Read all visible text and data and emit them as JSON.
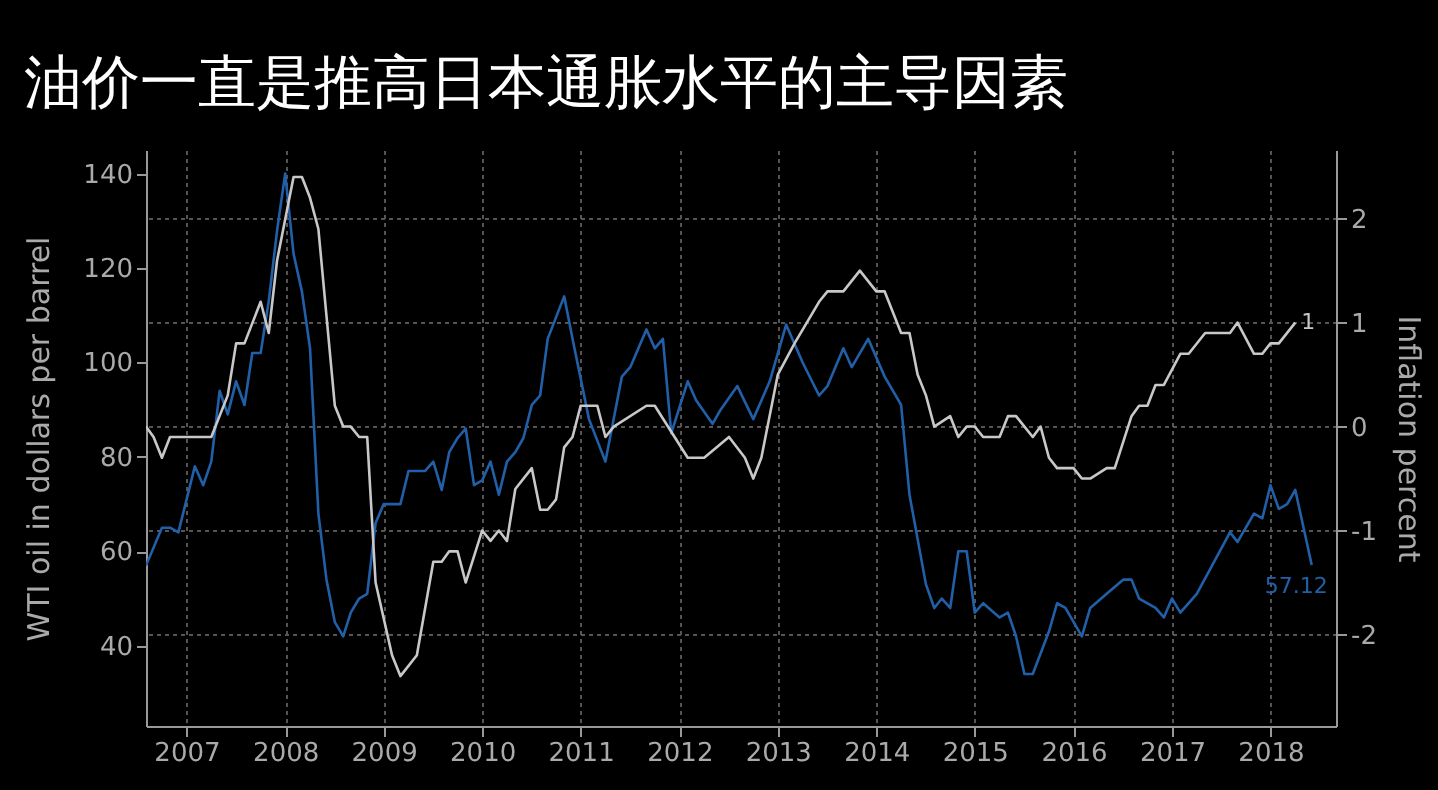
{
  "chart_data": {
    "type": "line",
    "title": "油价一直是推高日本通胀水平的主导因素",
    "ylabel": "WTI oil in dollars per barrel",
    "y2label": "Inflation percent",
    "xlim": [
      "2007-02",
      "2019-03"
    ],
    "xticks": [
      {
        "value": "2007-07",
        "label": "2007"
      },
      {
        "value": "2008-07",
        "label": "2008"
      },
      {
        "value": "2009-07",
        "label": "2009"
      },
      {
        "value": "2010-07",
        "label": "2010"
      },
      {
        "value": "2011-07",
        "label": "2011"
      },
      {
        "value": "2012-07",
        "label": "2012"
      },
      {
        "value": "2013-07",
        "label": "2013"
      },
      {
        "value": "2014-07",
        "label": "2014"
      },
      {
        "value": "2015-07",
        "label": "2015"
      },
      {
        "value": "2016-07",
        "label": "2016"
      },
      {
        "value": "2017-07",
        "label": "2017"
      },
      {
        "value": "2018-07",
        "label": "2018"
      }
    ],
    "ylim": [
      23,
      145
    ],
    "yticks": [
      40,
      60,
      80,
      100,
      120,
      140
    ],
    "y2lim": [
      -2.88,
      2.66
    ],
    "y2ticks": [
      -2,
      -1,
      0,
      1,
      2
    ],
    "grid": true,
    "series": [
      {
        "color": "#2160a8",
        "x": [
          "2007-02",
          "2007-04",
          "2007-05",
          "2007-06",
          "2007-08",
          "2007-09",
          "2007-10",
          "2007-11",
          "2007-12",
          "2008-01",
          "2008-02",
          "2008-03",
          "2008-04",
          "2008-05",
          "2008-06",
          "2008-07",
          "2008-08",
          "2008-09",
          "2008-10",
          "2008-11",
          "2008-12",
          "2009-01",
          "2009-02",
          "2009-03",
          "2009-04",
          "2009-05",
          "2009-06",
          "2009-07",
          "2009-08",
          "2009-09",
          "2009-10",
          "2009-12",
          "2010-01",
          "2010-02",
          "2010-03",
          "2010-04",
          "2010-05",
          "2010-06",
          "2010-07",
          "2010-08",
          "2010-09",
          "2010-10",
          "2010-11",
          "2010-12",
          "2011-01",
          "2011-02",
          "2011-03",
          "2011-05",
          "2011-06",
          "2011-08",
          "2011-10",
          "2011-12",
          "2012-01",
          "2012-03",
          "2012-04",
          "2012-05",
          "2012-06",
          "2012-08",
          "2012-09",
          "2012-11",
          "2012-12",
          "2013-02",
          "2013-04",
          "2013-06",
          "2013-08",
          "2013-10",
          "2013-12",
          "2014-01",
          "2014-03",
          "2014-04",
          "2014-06",
          "2014-08",
          "2014-10",
          "2014-11",
          "2015-01",
          "2015-02",
          "2015-03",
          "2015-04",
          "2015-05",
          "2015-06",
          "2015-07",
          "2015-08",
          "2015-10",
          "2015-11",
          "2015-12",
          "2016-01",
          "2016-02",
          "2016-04",
          "2016-05",
          "2016-06",
          "2016-08",
          "2016-09",
          "2016-11",
          "2017-01",
          "2017-02",
          "2017-03",
          "2017-05",
          "2017-06",
          "2017-07",
          "2017-08",
          "2017-10",
          "2018-02",
          "2018-03",
          "2018-05",
          "2018-06",
          "2018-07",
          "2018-08",
          "2018-09",
          "2018-10",
          "2018-12"
        ],
        "values": [
          57,
          65,
          65,
          64,
          78,
          74,
          79,
          94,
          89,
          96,
          91,
          102,
          102,
          113,
          128,
          140,
          123,
          115,
          103,
          68,
          54,
          45,
          42,
          47,
          50,
          51,
          66,
          70,
          70,
          70,
          77,
          77,
          79,
          73,
          81,
          84,
          86,
          74,
          75,
          79,
          72,
          79,
          81,
          84,
          91,
          93,
          105,
          114,
          105,
          88,
          79,
          97,
          99,
          107,
          103,
          105,
          85,
          96,
          92,
          87,
          90,
          95,
          88,
          96,
          108,
          100,
          93,
          95,
          103,
          99,
          105,
          97,
          91,
          72,
          53,
          48,
          50,
          48,
          60,
          60,
          47,
          49,
          46,
          47,
          42,
          34,
          34,
          43,
          49,
          48,
          42,
          48,
          51,
          54,
          54,
          50,
          48,
          46,
          50,
          47,
          51,
          64,
          62,
          68,
          67,
          74,
          69,
          70,
          73,
          57.12
        ],
        "value_labels": [
          null,
          null,
          null,
          null,
          null,
          null,
          null,
          null,
          null,
          null,
          null,
          null,
          null,
          null,
          null,
          null,
          null,
          null,
          null,
          null,
          null,
          null,
          null,
          null,
          null,
          null,
          null,
          null,
          null,
          null,
          null,
          null,
          null,
          null,
          null,
          null,
          null,
          null,
          null,
          null,
          null,
          null,
          null,
          null,
          null,
          null,
          null,
          null,
          null,
          null,
          null,
          null,
          null,
          null,
          null,
          null,
          null,
          null,
          null,
          null,
          null,
          null,
          null,
          null,
          null,
          null,
          null,
          null,
          null,
          null,
          null,
          null,
          null,
          null,
          null,
          null,
          null,
          null,
          null,
          null,
          null,
          null,
          null,
          null,
          null,
          null,
          null,
          null,
          null,
          null,
          null,
          null,
          null,
          null,
          null,
          null,
          null,
          null,
          null,
          null,
          null,
          null,
          null,
          null,
          null,
          null,
          null,
          null,
          null,
          "57.12"
        ]
      },
      {
        "color": "#c8c8c8",
        "axis": "y2",
        "x": [
          "2007-02",
          "2007-03",
          "2007-04",
          "2007-05",
          "2007-10",
          "2007-12",
          "2008-01",
          "2008-02",
          "2008-04",
          "2008-05",
          "2008-06",
          "2008-08",
          "2008-09",
          "2008-10",
          "2008-11",
          "2009-01",
          "2009-02",
          "2009-03",
          "2009-04",
          "2009-05",
          "2009-06",
          "2009-08",
          "2009-09",
          "2009-11",
          "2010-01",
          "2010-02",
          "2010-03",
          "2010-04",
          "2010-05",
          "2010-07",
          "2010-08",
          "2010-09",
          "2010-10",
          "2010-11",
          "2011-01",
          "2011-02",
          "2011-03",
          "2011-04",
          "2011-05",
          "2011-06",
          "2011-07",
          "2011-09",
          "2011-10",
          "2011-11",
          "2012-03",
          "2012-04",
          "2012-08",
          "2012-09",
          "2012-10",
          "2013-01",
          "2013-03",
          "2013-04",
          "2013-05",
          "2013-07",
          "2013-09",
          "2013-12",
          "2014-01",
          "2014-03",
          "2014-05",
          "2014-07",
          "2014-08",
          "2014-10",
          "2014-11",
          "2014-12",
          "2015-01",
          "2015-02",
          "2015-04",
          "2015-05",
          "2015-06",
          "2015-07",
          "2015-08",
          "2015-10",
          "2015-11",
          "2015-12",
          "2016-02",
          "2016-03",
          "2016-04",
          "2016-05",
          "2016-07",
          "2016-08",
          "2016-09",
          "2016-11",
          "2016-12",
          "2017-02",
          "2017-03",
          "2017-04",
          "2017-05",
          "2017-06",
          "2017-08",
          "2017-09",
          "2017-11",
          "2018-02",
          "2018-03",
          "2018-05",
          "2018-06",
          "2018-07",
          "2018-08",
          "2018-10"
        ],
        "values": [
          0.0,
          -0.1,
          -0.3,
          -0.1,
          -0.1,
          0.3,
          0.8,
          0.8,
          1.2,
          0.9,
          1.6,
          2.4,
          2.4,
          2.2,
          1.9,
          0.2,
          0.0,
          0.0,
          -0.1,
          -0.1,
          -1.5,
          -2.2,
          -2.4,
          -2.2,
          -1.3,
          -1.3,
          -1.2,
          -1.2,
          -1.5,
          -1.0,
          -1.1,
          -1.0,
          -1.1,
          -0.6,
          -0.4,
          -0.8,
          -0.8,
          -0.7,
          -0.2,
          -0.1,
          0.2,
          0.2,
          -0.1,
          0.0,
          0.2,
          0.2,
          -0.3,
          -0.3,
          -0.3,
          -0.1,
          -0.3,
          -0.5,
          -0.3,
          0.5,
          0.8,
          1.2,
          1.3,
          1.3,
          1.5,
          1.3,
          1.3,
          0.9,
          0.9,
          0.5,
          0.3,
          0.0,
          0.1,
          -0.1,
          0.0,
          0.0,
          -0.1,
          -0.1,
          0.1,
          0.1,
          -0.1,
          0.0,
          -0.3,
          -0.4,
          -0.4,
          -0.5,
          -0.5,
          -0.4,
          -0.4,
          0.1,
          0.2,
          0.2,
          0.4,
          0.4,
          0.7,
          0.7,
          0.9,
          0.9,
          1.0,
          0.7,
          0.7,
          0.8,
          0.8,
          1.0
        ],
        "value_labels": [
          null,
          null,
          null,
          null,
          null,
          null,
          null,
          null,
          null,
          null,
          null,
          null,
          null,
          null,
          null,
          null,
          null,
          null,
          null,
          null,
          null,
          null,
          null,
          null,
          null,
          null,
          null,
          null,
          null,
          null,
          null,
          null,
          null,
          null,
          null,
          null,
          null,
          null,
          null,
          null,
          null,
          null,
          null,
          null,
          null,
          null,
          null,
          null,
          null,
          null,
          null,
          null,
          null,
          null,
          null,
          null,
          null,
          null,
          null,
          null,
          null,
          null,
          null,
          null,
          null,
          null,
          null,
          null,
          null,
          null,
          null,
          null,
          null,
          null,
          null,
          null,
          null,
          null,
          null,
          null,
          null,
          null,
          null,
          null,
          null,
          null,
          null,
          null,
          null,
          null,
          null,
          null,
          null,
          null,
          null,
          null,
          null,
          "1"
        ]
      }
    ]
  }
}
